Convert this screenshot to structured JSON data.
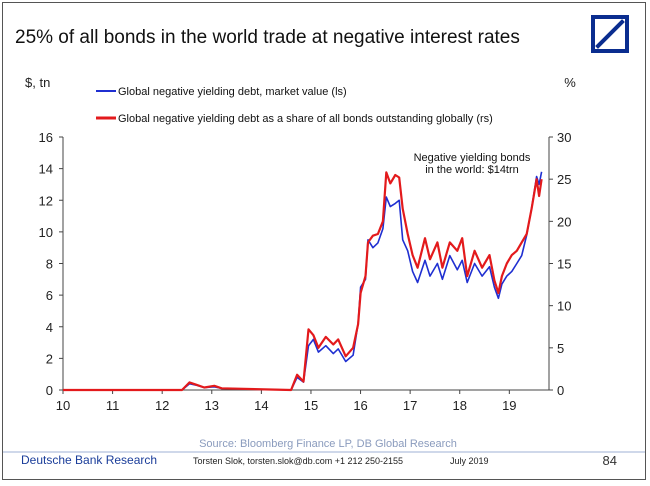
{
  "header": {
    "title": "25% of all bonds in the world trade at negative interest rates",
    "logo": "deutsche-bank-logo"
  },
  "footer": {
    "org": "Deutsche Bank Research",
    "contact": "Torsten Slok, torsten.slok@db.com +1 212 250-2155",
    "date": "July 2019",
    "page": "84"
  },
  "colors": {
    "series_market": "#1f2fd1",
    "series_share": "#e31a1c",
    "logo": "#0a2d8f"
  },
  "chart_data": {
    "type": "line",
    "title": "25% of all bonds in the world trade at negative interest rates",
    "ylabel_left": "$, tn",
    "ylabel_right": "%",
    "xlim": [
      10,
      19.8
    ],
    "ylim_left": [
      0,
      16
    ],
    "ylim_right": [
      0,
      30
    ],
    "x_ticks": [
      "10",
      "11",
      "12",
      "13",
      "14",
      "15",
      "16",
      "17",
      "18",
      "19"
    ],
    "y_left_ticks": [
      "0",
      "2",
      "4",
      "6",
      "8",
      "10",
      "12",
      "14",
      "16"
    ],
    "y_right_ticks": [
      "0",
      "5",
      "10",
      "15",
      "20",
      "25",
      "30"
    ],
    "legend": "top-left",
    "source": "Source: Bloomberg Finance LP, DB Global Research",
    "annotation": {
      "text": [
        "Negative yielding bonds",
        "in the world: $14trn"
      ],
      "x": 19.1,
      "y": 14.0
    },
    "series": [
      {
        "name": "Global negative yielding debt, market value (ls)",
        "axis": "left",
        "color": "#1f2fd1",
        "points": [
          [
            10,
            0
          ],
          [
            12.4,
            0
          ],
          [
            12.55,
            0.4
          ],
          [
            12.7,
            0.3
          ],
          [
            12.85,
            0.15
          ],
          [
            13.05,
            0.2
          ],
          [
            13.2,
            0.1
          ],
          [
            14.6,
            0
          ],
          [
            14.72,
            0.8
          ],
          [
            14.85,
            0.5
          ],
          [
            14.95,
            2.8
          ],
          [
            15.05,
            3.2
          ],
          [
            15.15,
            2.4
          ],
          [
            15.3,
            2.8
          ],
          [
            15.45,
            2.3
          ],
          [
            15.55,
            2.6
          ],
          [
            15.7,
            1.8
          ],
          [
            15.85,
            2.2
          ],
          [
            15.95,
            4.2
          ],
          [
            16.0,
            6.5
          ],
          [
            16.1,
            7.0
          ],
          [
            16.15,
            9.5
          ],
          [
            16.25,
            9.0
          ],
          [
            16.35,
            9.3
          ],
          [
            16.45,
            10.2
          ],
          [
            16.52,
            12.2
          ],
          [
            16.6,
            11.6
          ],
          [
            16.7,
            11.8
          ],
          [
            16.78,
            12.0
          ],
          [
            16.85,
            9.5
          ],
          [
            16.95,
            8.8
          ],
          [
            17.05,
            7.5
          ],
          [
            17.15,
            6.8
          ],
          [
            17.3,
            8.2
          ],
          [
            17.4,
            7.2
          ],
          [
            17.55,
            8.0
          ],
          [
            17.65,
            7.0
          ],
          [
            17.8,
            8.5
          ],
          [
            17.95,
            7.6
          ],
          [
            18.05,
            8.2
          ],
          [
            18.15,
            6.8
          ],
          [
            18.3,
            8.0
          ],
          [
            18.45,
            7.2
          ],
          [
            18.6,
            7.8
          ],
          [
            18.7,
            6.5
          ],
          [
            18.78,
            5.8
          ],
          [
            18.85,
            6.7
          ],
          [
            18.95,
            7.2
          ],
          [
            19.05,
            7.5
          ],
          [
            19.15,
            8.0
          ],
          [
            19.25,
            8.5
          ],
          [
            19.35,
            9.8
          ],
          [
            19.45,
            11.5
          ],
          [
            19.55,
            13.5
          ],
          [
            19.6,
            13.0
          ],
          [
            19.65,
            13.8
          ]
        ]
      },
      {
        "name": "Global negative yielding debt as a share of all bonds outstanding globally (rs)",
        "axis": "right",
        "color": "#e31a1c",
        "points": [
          [
            10,
            0
          ],
          [
            12.4,
            0
          ],
          [
            12.55,
            0.9
          ],
          [
            12.7,
            0.6
          ],
          [
            12.85,
            0.3
          ],
          [
            13.05,
            0.5
          ],
          [
            13.2,
            0.2
          ],
          [
            14.6,
            0
          ],
          [
            14.72,
            1.8
          ],
          [
            14.85,
            1.0
          ],
          [
            14.95,
            7.2
          ],
          [
            15.05,
            6.5
          ],
          [
            15.15,
            5.0
          ],
          [
            15.3,
            6.3
          ],
          [
            15.45,
            5.4
          ],
          [
            15.55,
            6.0
          ],
          [
            15.7,
            4.0
          ],
          [
            15.85,
            5.0
          ],
          [
            15.95,
            7.8
          ],
          [
            16.0,
            11.5
          ],
          [
            16.1,
            13.5
          ],
          [
            16.15,
            17.5
          ],
          [
            16.25,
            18.3
          ],
          [
            16.35,
            18.5
          ],
          [
            16.45,
            20.0
          ],
          [
            16.52,
            25.8
          ],
          [
            16.6,
            24.5
          ],
          [
            16.7,
            25.5
          ],
          [
            16.78,
            25.2
          ],
          [
            16.85,
            21.5
          ],
          [
            16.95,
            18.5
          ],
          [
            17.05,
            16.0
          ],
          [
            17.15,
            14.5
          ],
          [
            17.3,
            18.0
          ],
          [
            17.4,
            15.5
          ],
          [
            17.55,
            17.5
          ],
          [
            17.65,
            14.5
          ],
          [
            17.8,
            17.5
          ],
          [
            17.95,
            16.5
          ],
          [
            18.05,
            18.0
          ],
          [
            18.15,
            13.5
          ],
          [
            18.3,
            16.5
          ],
          [
            18.45,
            14.5
          ],
          [
            18.6,
            16.0
          ],
          [
            18.7,
            13.0
          ],
          [
            18.78,
            11.5
          ],
          [
            18.85,
            13.5
          ],
          [
            18.95,
            15.0
          ],
          [
            19.05,
            16.0
          ],
          [
            19.15,
            16.5
          ],
          [
            19.25,
            17.5
          ],
          [
            19.35,
            18.5
          ],
          [
            19.45,
            21.5
          ],
          [
            19.55,
            25.0
          ],
          [
            19.6,
            23.0
          ],
          [
            19.65,
            25.0
          ]
        ]
      }
    ]
  }
}
